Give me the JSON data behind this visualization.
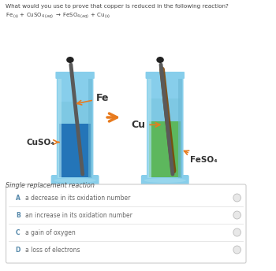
{
  "question": "What would you use to prove that copper is reduced in the following reaction?",
  "subtitle": "Single replacement reaction",
  "options": [
    {
      "label": "A",
      "text": "a decrease in its oxidation number"
    },
    {
      "label": "B",
      "text": "an increase in its oxidation number"
    },
    {
      "label": "C",
      "text": "a gain of oxygen"
    },
    {
      "label": "D",
      "text": "a loss of electrons"
    }
  ],
  "bg_color": "#ffffff",
  "arrow_color": "#E87B1E",
  "label_fe": "Fe",
  "label_cuso4": "CuSO₄",
  "label_cu": "Cu",
  "label_feso4": "FeSO₄",
  "beaker1_liquid_dark": "#2475B8",
  "beaker1_liquid_light": "#7EC8E3",
  "beaker2_liquid_dark": "#5DB75D",
  "beaker2_liquid_light": "#7EC8E3",
  "beaker_glass": "#87CEEB",
  "beaker_glass_dark": "#6BB8D4",
  "nail_body": "#5a5a5a",
  "nail_head": "#222222",
  "copper_deposit": "#7B3F00"
}
